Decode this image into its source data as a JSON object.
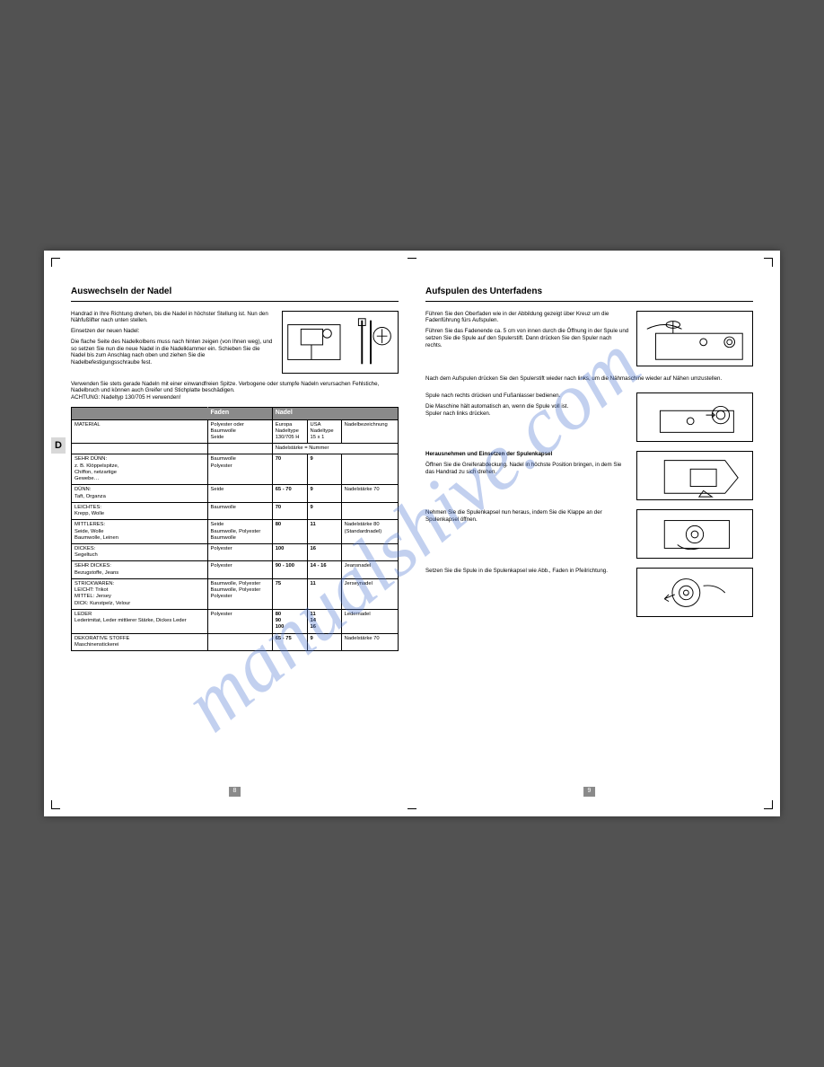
{
  "watermark": "manualshive.com",
  "left": {
    "title": "Auswechseln der Nadel",
    "p1": "Handrad in Ihre Richtung drehen, bis die Nadel in höchster Stellung ist. Nun den Nähfußlifter nach unten stellen.",
    "p2": "Einsetzen der neuen Nadel:",
    "p3": "Die flache Seite des Nadelkolbens muss nach hinten zeigen (von Ihnen weg), und so setzen Sie nun die neue Nadel in die Nadelklammer ein. Schieben Sie die Nadel bis zum Anschlag nach oben und ziehen Sie die Nadelbefestigungsschraube fest.",
    "p4": "Verwenden Sie stets gerade Nadeln mit einer einwandfreien Spitze. Verbogene oder stumpfe Nadeln verursachen Fehlstiche, Nadelbruch und können auch Greifer und Stichplatte beschädigen.\nACHTUNG: Nadeltyp 130/705 H verwenden!",
    "table": {
      "hdr_faden": "Faden",
      "hdr_nadel": "Nadel",
      "row1_c1": "MATERIAL",
      "row1_c2": "Polyester oder\nBaumwolle\nSeide",
      "row1_c3": "Europa\nNadeltype\n130/705 H",
      "row1_c4": "USA\nNadeltype\n15 x 1",
      "row1_c5": "Nadelbezeichnung",
      "row2_span": "Nadelstärke = Nummer",
      "rows": [
        {
          "c1": "SEHR DÜNN:\nz. B. Klöppelspitze,\nChiffon, netzartige\nGewebe…",
          "c2": "Baumwolle\nPolyester",
          "c3": "70",
          "c4": "9",
          "c5": ""
        },
        {
          "c1": "DÜNN:\nTaft, Organza",
          "c2": "Seide",
          "c3": "65 - 70",
          "c4": "9",
          "c5": "Nadelstärke 70"
        },
        {
          "c1": "LEICHTES:\nKrepp, Wolle",
          "c2": "Baumwolle",
          "c3": "70",
          "c4": "9",
          "c5": ""
        },
        {
          "c1": "MITTLERES:\nSeide, Wolle\nBaumwolle, Leinen",
          "c2": "Seide\nBaumwolle, Polyester\nBaumwolle",
          "c3": "80",
          "c4": "11",
          "c5": "Nadelstärke 80\n(Standardnadel)"
        },
        {
          "c1": "DICKES:\nSegeltuch",
          "c2": "Polyester",
          "c3": "100",
          "c4": "16",
          "c5": ""
        },
        {
          "c1": "SEHR DICKES:\nBezugstoffe, Jeans",
          "c2": "Polyester",
          "c3": "90 - 100",
          "c4": "14 - 16",
          "c5": "Jeansnadel"
        },
        {
          "c1": "STRICKWAREN:\nLEICHT: Trikot\nMITTEL: Jersey\nDICK: Kunstpelz, Velour",
          "c2": "Baumwolle, Polyester\nBaumwolle, Polyester\nPolyester",
          "c3": "75",
          "c4": "11",
          "c5": "Jerseynadel"
        },
        {
          "c1": "LEDER\nLederimitat, Leder mittlerer Stärke, Dickes Leder",
          "c2": "Polyester",
          "c3": "80\n90\n100",
          "c4": "11\n14\n16",
          "c5": "Ledernadel"
        },
        {
          "c1": "DEKORATIVE STOFFE\nMaschinenstickerei",
          "c2": "",
          "c3": "65 - 75",
          "c4": "9",
          "c5": "Nadelstärke 70"
        }
      ]
    },
    "page": "8"
  },
  "right": {
    "title": "Aufspulen des Unterfadens",
    "p1": "Führen Sie den Oberfaden wie in der Abbildung gezeigt über Kreuz um die Fadenführung fürs Aufspulen.",
    "p2": "Führen Sie das Fadenende ca. 5 cm von innen durch die Öffnung in der Spule und setzen Sie die Spule auf den Spulerstift. Dann drücken Sie den Spuler nach rechts.",
    "p3": "Nach dem Aufspulen drücken Sie den Spulerstift wieder nach links, um die Nähmaschine wieder auf Nähen umzustellen.",
    "b2_1": "Spule nach rechts drücken und Fußanlasser bedienen.",
    "b2_2": "Die Maschine hält automatisch an, wenn die Spule voll ist.\nSpuler nach links drücken.",
    "b3_h": "Herausnehmen und Einsetzen der Spulenkapsel",
    "b3_t": "Öffnen Sie die Greiferabdeckung. Nadel in höchste Position bringen, in dem Sie das Handrad zu sich drehen.",
    "b4": "Nehmen Sie die Spulenkapsel nun heraus, indem Sie die Klappe an der Spulenkapsel öffnen.",
    "b5": "Setzen Sie die Spule in die Spulenkapsel wie Abb., Faden in Pfeilrichtung.",
    "page": "9"
  },
  "tab": "D"
}
